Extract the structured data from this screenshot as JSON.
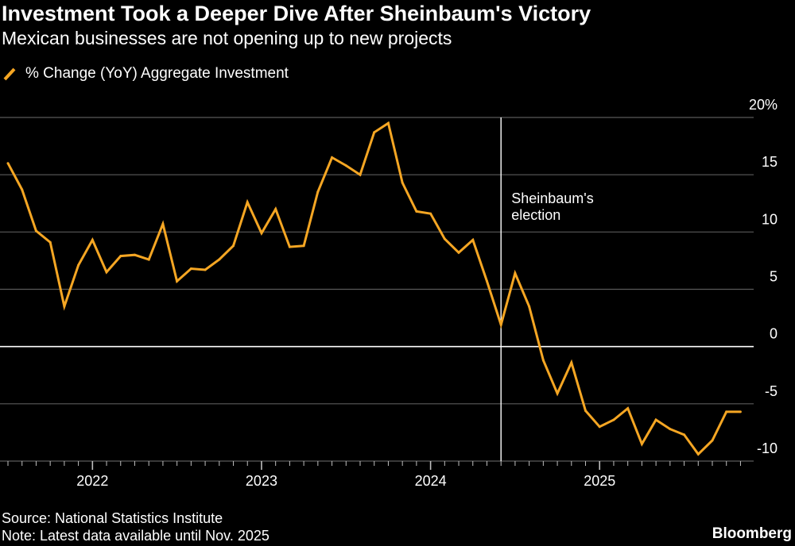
{
  "header": {
    "title": "Investment Took a Deeper Dive After Sheinbaum's Victory",
    "subtitle": "Mexican businesses are not opening up to new projects"
  },
  "legend": {
    "label": "% Change (YoY) Aggregate Investment"
  },
  "footer": {
    "source": "Source: National Statistics Institute",
    "note": "Note: Latest data available until Nov. 2025",
    "brand": "Bloomberg"
  },
  "colors": {
    "background": "#000000",
    "series": "#f5a623",
    "grid": "#5a5a5a",
    "zero_line": "#ffffff",
    "text": "#ffffff"
  },
  "chart_data": {
    "type": "line",
    "title": "Investment Took a Deeper Dive After Sheinbaum's Victory",
    "subtitle": "Mexican businesses are not opening up to new projects",
    "xlabel": "",
    "ylabel": "",
    "ylim": [
      -10,
      20
    ],
    "yticks": [
      20,
      15,
      10,
      5,
      0,
      -5,
      -10
    ],
    "ytick_labels": [
      "20%",
      "15",
      "10",
      "5",
      "0",
      "-5",
      "-10"
    ],
    "xticks": [
      "2022",
      "2023",
      "2024",
      "2025"
    ],
    "grid": true,
    "legend_position": "top-left",
    "series": [
      {
        "name": "% Change (YoY) Aggregate Investment",
        "start": "2021-07",
        "end": "2025-11",
        "frequency": "monthly",
        "values": [
          16.0,
          13.7,
          10.1,
          9.1,
          3.5,
          7.1,
          9.3,
          6.5,
          7.9,
          8.0,
          7.6,
          10.7,
          5.7,
          6.8,
          6.7,
          7.6,
          8.8,
          12.6,
          9.9,
          12.0,
          8.7,
          8.8,
          13.5,
          16.5,
          15.8,
          15.0,
          18.7,
          19.5,
          14.3,
          11.8,
          11.6,
          9.4,
          8.2,
          9.3,
          5.7,
          1.9,
          6.4,
          3.5,
          -1.2,
          -4.1,
          -1.4,
          -5.6,
          -7.0,
          -6.4,
          -5.4,
          -8.5,
          -6.4,
          -7.2,
          -7.7,
          -9.4,
          -8.2,
          -5.7,
          -5.7
        ]
      }
    ],
    "annotations": [
      {
        "label_lines": [
          "Sheinbaum's",
          "election"
        ],
        "date": "2024-06"
      }
    ]
  }
}
